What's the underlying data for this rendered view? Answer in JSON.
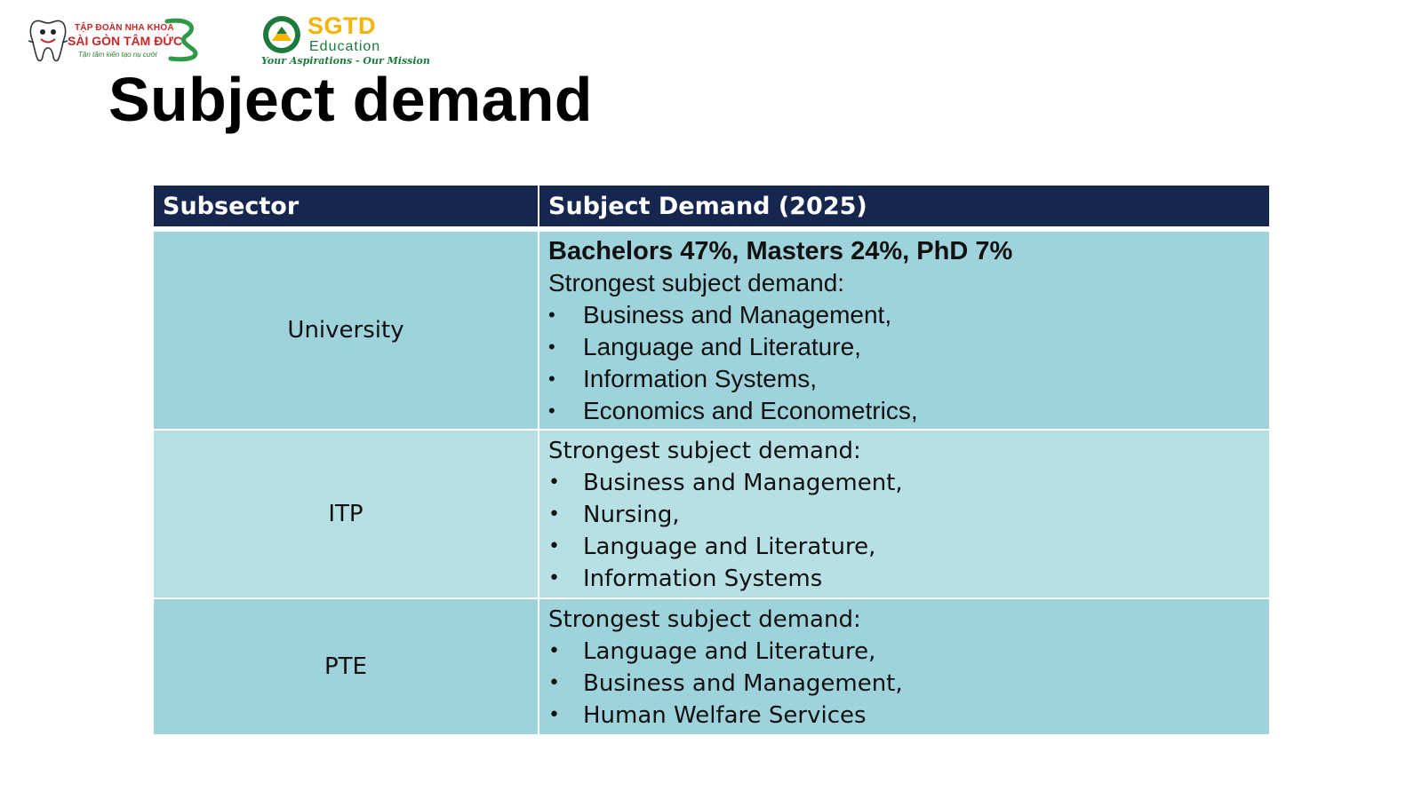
{
  "logos": {
    "dental": {
      "line1": "TẬP ĐOÀN NHA KHOA",
      "line2": "SÀI GÒN TÂM ĐỨC",
      "tagline": "Tận tâm kiến tạo nụ cười"
    },
    "sgtd": {
      "brand": "SGTD",
      "sub": "Education",
      "tagline": "Your Aspirations - Our Mission"
    }
  },
  "title": "Subject demand",
  "table": {
    "headers": [
      "Subsector",
      "Subject Demand (2025)"
    ],
    "rows": [
      {
        "subsector": "University",
        "headline": "Bachelors 47%, Masters 24%, PhD 7%",
        "intro": "Strongest subject demand:",
        "items": [
          "Business and Management,",
          "Language and Literature,",
          "Information Systems,",
          "Economics and Econometrics,"
        ]
      },
      {
        "subsector": "ITP",
        "intro": "Strongest subject demand:",
        "items": [
          "Business and Management,",
          "Nursing,",
          "Language and Literature,",
          "Information Systems"
        ]
      },
      {
        "subsector": "PTE",
        "intro": "Strongest subject demand:",
        "items": [
          "Language and Literature,",
          "Business and Management,",
          "Human Welfare Services"
        ]
      }
    ]
  },
  "bullet_glyph": "•",
  "colors": {
    "header_bg": "#16264f",
    "row_dark": "#9ed3db",
    "row_light": "#b7e0e5",
    "dental_red": "#c62828",
    "sgtd_gold": "#f4b400",
    "sgtd_green": "#1b7a3c"
  }
}
